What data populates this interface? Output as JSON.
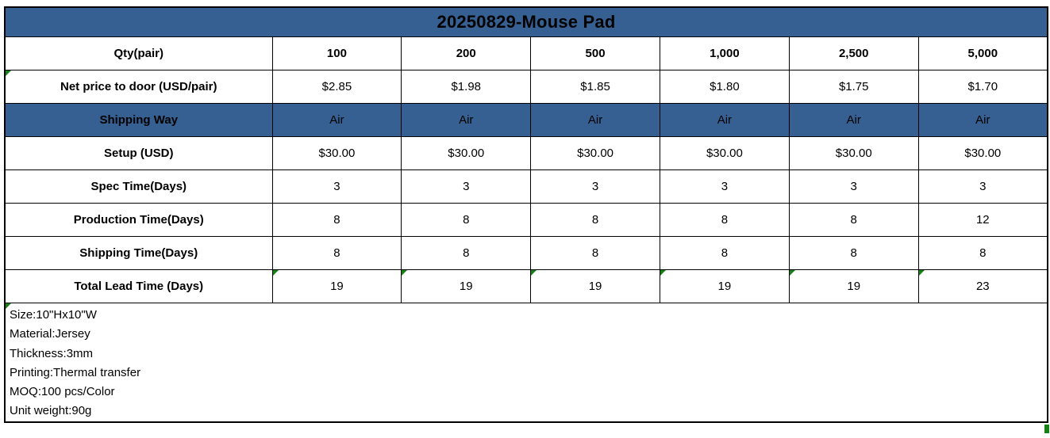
{
  "title": "20250829-Mouse Pad",
  "colors": {
    "title_bg": "#366092",
    "highlight_row_bg": "#366092",
    "border": "#000000",
    "text": "#000000",
    "flag_green": "#168216",
    "background": "#FFFFFF"
  },
  "table": {
    "header": {
      "label": "Qty(pair)",
      "values": [
        "100",
        "200",
        "500",
        "1,000",
        "2,500",
        "5,000"
      ]
    },
    "rows": [
      {
        "label": "Net price to door (USD/pair)",
        "values": [
          "$2.85",
          "$1.98",
          "$1.85",
          "$1.80",
          "$1.75",
          "$1.70"
        ],
        "highlight": false,
        "label_flag": true,
        "value_flags": false
      },
      {
        "label": "Shipping Way",
        "values": [
          "Air",
          "Air",
          "Air",
          "Air",
          "Air",
          "Air"
        ],
        "highlight": true,
        "label_flag": false,
        "value_flags": false
      },
      {
        "label": "Setup (USD)",
        "values": [
          "$30.00",
          "$30.00",
          "$30.00",
          "$30.00",
          "$30.00",
          "$30.00"
        ],
        "highlight": false,
        "label_flag": false,
        "value_flags": false
      },
      {
        "label": "Spec Time(Days)",
        "values": [
          "3",
          "3",
          "3",
          "3",
          "3",
          "3"
        ],
        "highlight": false,
        "label_flag": false,
        "value_flags": false
      },
      {
        "label": "Production Time(Days)",
        "values": [
          "8",
          "8",
          "8",
          "8",
          "8",
          "12"
        ],
        "highlight": false,
        "label_flag": false,
        "value_flags": false
      },
      {
        "label": "Shipping Time(Days)",
        "values": [
          "8",
          "8",
          "8",
          "8",
          "8",
          "8"
        ],
        "highlight": false,
        "label_flag": false,
        "value_flags": false
      },
      {
        "label": "Total Lead Time (Days)",
        "values": [
          "19",
          "19",
          "19",
          "19",
          "19",
          "23"
        ],
        "highlight": false,
        "label_flag": false,
        "value_flags": true
      }
    ]
  },
  "notes": {
    "flag": true,
    "lines": [
      "Size:10\"Hx10\"W",
      "Material:Jersey",
      "Thickness:3mm",
      "Printing:Thermal transfer",
      "MOQ:100 pcs/Color",
      "Unit weight:90g"
    ]
  }
}
